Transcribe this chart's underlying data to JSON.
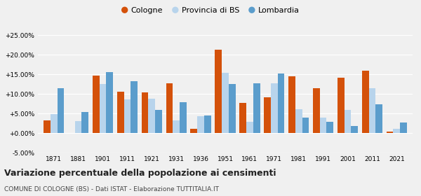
{
  "years": [
    1871,
    1881,
    1901,
    1911,
    1921,
    1931,
    1936,
    1951,
    1961,
    1971,
    1981,
    1991,
    2001,
    2011,
    2021
  ],
  "cologne": [
    3.2,
    0.0,
    14.7,
    10.6,
    10.5,
    12.8,
    1.2,
    21.3,
    7.8,
    9.1,
    14.5,
    11.5,
    14.2,
    16.0,
    0.5
  ],
  "provincia_bs": [
    4.9,
    3.1,
    12.6,
    8.6,
    8.9,
    3.2,
    4.4,
    15.4,
    3.0,
    12.8,
    6.2,
    4.0,
    6.0,
    11.5,
    1.1
  ],
  "lombardia": [
    11.5,
    5.5,
    15.6,
    13.2,
    5.9,
    8.0,
    4.5,
    12.5,
    12.8,
    15.3,
    4.0,
    2.9,
    1.9,
    7.4,
    2.7
  ],
  "cologne_color": "#d4510a",
  "provincia_color": "#b8d4ec",
  "lombardia_color": "#5b9dcc",
  "bg_color": "#f0f0f0",
  "title": "Variazione percentuale della popolazione ai censimenti",
  "subtitle": "COMUNE DI COLOGNE (BS) - Dati ISTAT - Elaborazione TUTTITALIA.IT",
  "ylim": [
    -5.0,
    25.0
  ],
  "yticks": [
    -5.0,
    0.0,
    5.0,
    10.0,
    15.0,
    20.0,
    25.0
  ],
  "legend_labels": [
    "Cologne",
    "Provincia di BS",
    "Lombardia"
  ]
}
